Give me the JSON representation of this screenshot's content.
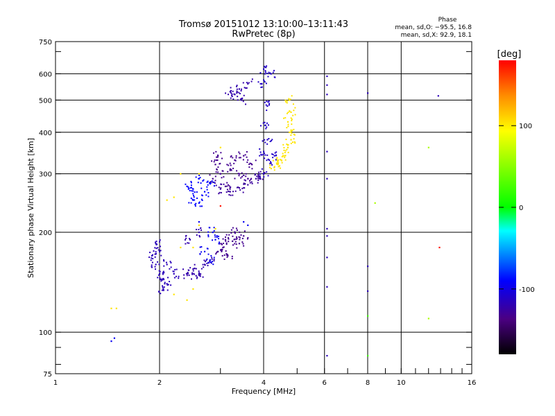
{
  "chart_data": {
    "type": "scatter",
    "title": "Tromsø 20151012 13:10:00–13:11:43",
    "subtitle": "RwPretec (8p)",
    "xlabel": "Frequency [MHz]",
    "ylabel": "Stationary phase Virtual Height [km]",
    "x_scale": "log",
    "y_scale": "log",
    "xlim": [
      1,
      16
    ],
    "ylim": [
      75,
      750
    ],
    "x_ticks": [
      1,
      2,
      4,
      6,
      8,
      10,
      16
    ],
    "y_ticks": [
      75,
      100,
      200,
      300,
      400,
      500,
      600,
      750
    ],
    "x_gridlines": [
      2,
      4,
      6,
      8,
      10
    ],
    "y_gridlines": [
      100,
      200,
      300,
      400,
      500,
      600
    ],
    "grid": true,
    "stats": {
      "heading": "Phase",
      "line1": "mean, sd,O: −95.5, 16.8",
      "line2": "mean, sd,X:  92.9, 18.1"
    },
    "colorbar": {
      "label": "[deg]",
      "ticks": [
        100,
        0,
        -100
      ],
      "range": [
        -180,
        180
      ],
      "colors": [
        "#000000",
        "#4b0082",
        "#0000ff",
        "#00ffff",
        "#00ff00",
        "#ffff00",
        "#ff8c00",
        "#ff0000"
      ]
    },
    "series": [
      {
        "cluster": true,
        "phase": -115,
        "points": [
          [
            4.0,
            620
          ],
          [
            4.2,
            600
          ],
          [
            3.95,
            560
          ],
          [
            4.1,
            480
          ],
          [
            4.05,
            420
          ],
          [
            4.1,
            380
          ],
          [
            4.0,
            350
          ],
          [
            4.15,
            330
          ],
          [
            4.3,
            340
          ],
          [
            4.0,
            300
          ]
        ]
      },
      {
        "cluster": true,
        "phase": -125,
        "points": [
          [
            3.3,
            520
          ],
          [
            3.4,
            540
          ],
          [
            3.45,
            500
          ],
          [
            3.6,
            560
          ],
          [
            3.2,
            530
          ]
        ]
      },
      {
        "cluster": true,
        "phase": -135,
        "points": [
          [
            2.85,
            290
          ],
          [
            3.0,
            300
          ],
          [
            3.2,
            310
          ],
          [
            3.4,
            300
          ],
          [
            3.6,
            290
          ],
          [
            3.1,
            275
          ],
          [
            2.9,
            320
          ],
          [
            3.3,
            330
          ],
          [
            3.5,
            340
          ],
          [
            3.7,
            320
          ],
          [
            2.95,
            340
          ]
        ]
      },
      {
        "cluster": true,
        "phase": -130,
        "points": [
          [
            3.2,
            265
          ],
          [
            3.4,
            272
          ],
          [
            3.6,
            278
          ],
          [
            3.8,
            290
          ],
          [
            3.9,
            295
          ],
          [
            3.0,
            270
          ]
        ]
      },
      {
        "cluster": true,
        "phase": -95,
        "points": [
          [
            2.5,
            250
          ],
          [
            2.6,
            245
          ],
          [
            2.7,
            265
          ],
          [
            2.8,
            280
          ],
          [
            2.5,
            270
          ],
          [
            2.4,
            275
          ],
          [
            2.6,
            290
          ]
        ]
      },
      {
        "cluster": true,
        "phase": 100,
        "points": [
          [
            4.75,
            500
          ],
          [
            4.8,
            460
          ],
          [
            4.7,
            430
          ],
          [
            4.75,
            400
          ],
          [
            4.8,
            380
          ],
          [
            4.7,
            360
          ],
          [
            4.6,
            340
          ],
          [
            4.5,
            330
          ],
          [
            4.3,
            315
          ],
          [
            4.4,
            320
          ]
        ]
      },
      {
        "cluster": true,
        "phase": -120,
        "points": [
          [
            1.95,
            160
          ],
          [
            2.0,
            150
          ],
          [
            2.05,
            145
          ],
          [
            2.1,
            160
          ],
          [
            1.9,
            170
          ],
          [
            2.0,
            175
          ],
          [
            2.1,
            140
          ],
          [
            2.2,
            150
          ],
          [
            1.95,
            185
          ],
          [
            2.05,
            135
          ]
        ]
      },
      {
        "cluster": true,
        "phase": -125,
        "points": [
          [
            2.4,
            150
          ],
          [
            2.5,
            155
          ],
          [
            2.6,
            150
          ],
          [
            2.7,
            160
          ],
          [
            2.55,
            148
          ],
          [
            2.8,
            165
          ],
          [
            2.45,
            190
          ],
          [
            2.6,
            200
          ]
        ]
      },
      {
        "cluster": true,
        "phase": -135,
        "points": [
          [
            2.95,
            175
          ],
          [
            3.05,
            180
          ],
          [
            3.15,
            170
          ],
          [
            3.25,
            188
          ],
          [
            3.4,
            185
          ],
          [
            3.5,
            195
          ],
          [
            3.3,
            200
          ],
          [
            3.1,
            190
          ]
        ]
      },
      {
        "cluster": true,
        "phase": -100,
        "points": [
          [
            2.8,
            165
          ],
          [
            2.9,
            190
          ],
          [
            2.7,
            175
          ],
          [
            2.85,
            200
          ]
        ]
      },
      {
        "cluster": false,
        "phase": 100,
        "points": [
          [
            2.3,
            180
          ],
          [
            2.5,
            180
          ],
          [
            2.6,
            210
          ],
          [
            2.9,
            205
          ],
          [
            2.2,
            130
          ],
          [
            2.4,
            125
          ],
          [
            2.5,
            135
          ],
          [
            2.3,
            300
          ],
          [
            2.6,
            300
          ],
          [
            2.1,
            250
          ],
          [
            2.2,
            255
          ],
          [
            3.0,
            360
          ]
        ]
      },
      {
        "cluster": false,
        "phase": 100,
        "points": [
          [
            1.45,
            118
          ],
          [
            1.5,
            118
          ]
        ]
      },
      {
        "cluster": false,
        "phase": -100,
        "points": [
          [
            1.45,
            94
          ],
          [
            1.48,
            96
          ],
          [
            3.6,
            210
          ],
          [
            3.5,
            215
          ],
          [
            2.6,
            215
          ]
        ]
      },
      {
        "cluster": false,
        "phase": -120,
        "points": [
          [
            6.1,
            590
          ],
          [
            6.1,
            555
          ],
          [
            6.1,
            520
          ],
          [
            6.1,
            350
          ],
          [
            6.1,
            290
          ],
          [
            6.1,
            205
          ],
          [
            6.1,
            195
          ],
          [
            6.1,
            168
          ],
          [
            6.1,
            137
          ],
          [
            6.1,
            85
          ],
          [
            8.0,
            158
          ],
          [
            8.0,
            133
          ],
          [
            12.8,
            515
          ],
          [
            8.0,
            525
          ]
        ]
      },
      {
        "cluster": false,
        "phase": 20,
        "points": [
          [
            8.0,
            112
          ],
          [
            8.0,
            85
          ]
        ]
      },
      {
        "cluster": false,
        "phase": 60,
        "points": [
          [
            12.0,
            360
          ],
          [
            12.0,
            110
          ],
          [
            8.4,
            245
          ]
        ]
      },
      {
        "cluster": false,
        "phase": 175,
        "points": [
          [
            3.0,
            240
          ],
          [
            12.9,
            180
          ]
        ]
      }
    ]
  }
}
